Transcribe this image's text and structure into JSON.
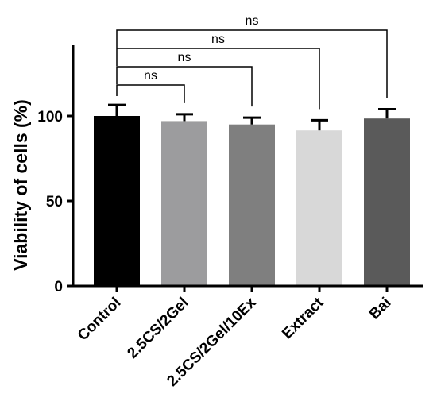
{
  "chart_data": {
    "type": "bar",
    "title": "",
    "xlabel": "",
    "ylabel": "Viability of cells (%)",
    "ylim": [
      0,
      150
    ],
    "yticks": [
      0,
      50,
      100
    ],
    "grid": false,
    "categories": [
      "Control",
      "2.5CS/2Gel",
      "2.5CS/2Gel/10Ex",
      "Extract",
      "Bai"
    ],
    "values": [
      100,
      97,
      95,
      91.5,
      98.5
    ],
    "errors": [
      6.5,
      4,
      4,
      6,
      5.5
    ],
    "colors": [
      "#000000",
      "#9c9c9e",
      "#7f7f7f",
      "#d8d8d8",
      "#5a5a5a"
    ],
    "comparisons": [
      {
        "from": "Control",
        "to": "2.5CS/2Gel",
        "label": "ns"
      },
      {
        "from": "Control",
        "to": "2.5CS/2Gel/10Ex",
        "label": "ns"
      },
      {
        "from": "Control",
        "to": "Extract",
        "label": "ns"
      },
      {
        "from": "Control",
        "to": "Bai",
        "label": "ns"
      }
    ]
  }
}
